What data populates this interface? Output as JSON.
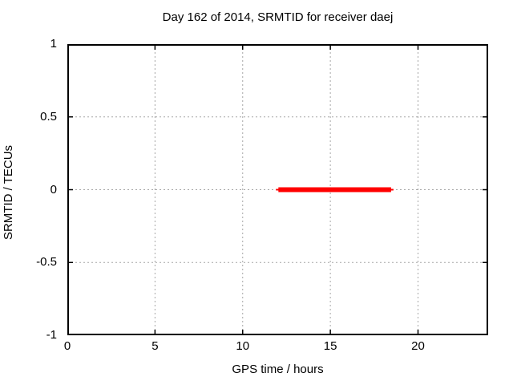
{
  "chart_data": {
    "type": "line",
    "title": "Day 162 of 2014, SRMTID for receiver daej",
    "xlabel": "GPS time / hours",
    "ylabel": "SRMTID / TECUs",
    "xlim": [
      0,
      24
    ],
    "ylim": [
      -1,
      1
    ],
    "xticks": [
      0,
      5,
      10,
      15,
      20
    ],
    "yticks": [
      -1,
      -0.5,
      0,
      0.5,
      1
    ],
    "grid": true,
    "legend_position": "none",
    "colors": {
      "background": "#ffffff",
      "axis": "#000000",
      "grid": "#a6a6a6",
      "text": "#000000",
      "series": "#ff0000"
    },
    "series": [
      {
        "name": "SRMTID",
        "color": "#ff0000",
        "line_width": 6,
        "points": [
          [
            11.9,
            0.0
          ],
          [
            18.6,
            0.0
          ]
        ]
      }
    ]
  }
}
